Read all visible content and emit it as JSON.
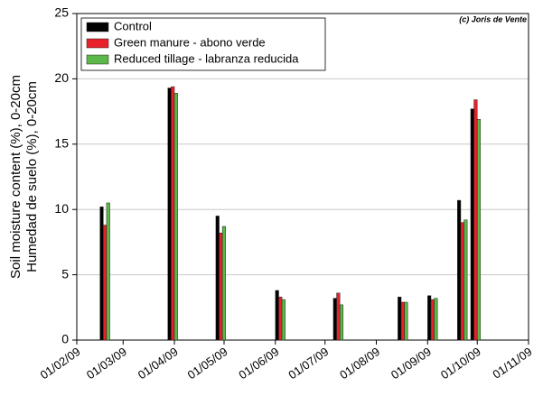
{
  "chart_data": {
    "type": "bar",
    "annotation": "(c) Joris de Vente",
    "y_label": [
      "Soil moisture content (%), 0-20cm",
      "Humedad de suelo (%), 0-20cm"
    ],
    "x": [
      "18/02/09",
      "31/03/09",
      "29/04/09",
      "04/06/09",
      "09/07/09",
      "17/08/09",
      "04/09/09",
      "22/09/09",
      "30/09/09"
    ],
    "series": [
      {
        "name": "Control",
        "color": "#000000",
        "values": [
          10.2,
          19.3,
          9.5,
          3.8,
          3.2,
          3.3,
          3.4,
          10.7,
          17.7
        ]
      },
      {
        "name": "Green manure - abono verde",
        "color": "#e8212a",
        "values": [
          8.8,
          19.4,
          8.2,
          3.3,
          3.6,
          2.9,
          3.1,
          9.0,
          18.4
        ]
      },
      {
        "name": "Reduced tillage - labranza reducida",
        "color": "#5cb848",
        "values": [
          10.5,
          18.9,
          8.7,
          3.1,
          2.7,
          2.9,
          3.2,
          9.2,
          16.9
        ]
      }
    ],
    "xlim": [
      "01/02/09",
      "01/11/09"
    ],
    "xticks": [
      "01/02/09",
      "01/03/09",
      "01/04/09",
      "01/05/09",
      "01/06/09",
      "01/07/09",
      "01/08/09",
      "01/09/09",
      "01/10/09",
      "01/11/09"
    ],
    "ylim": [
      0,
      25
    ],
    "yticks": [
      0,
      5,
      10,
      15,
      20,
      25
    ],
    "grid": true,
    "legend": "top-left"
  }
}
